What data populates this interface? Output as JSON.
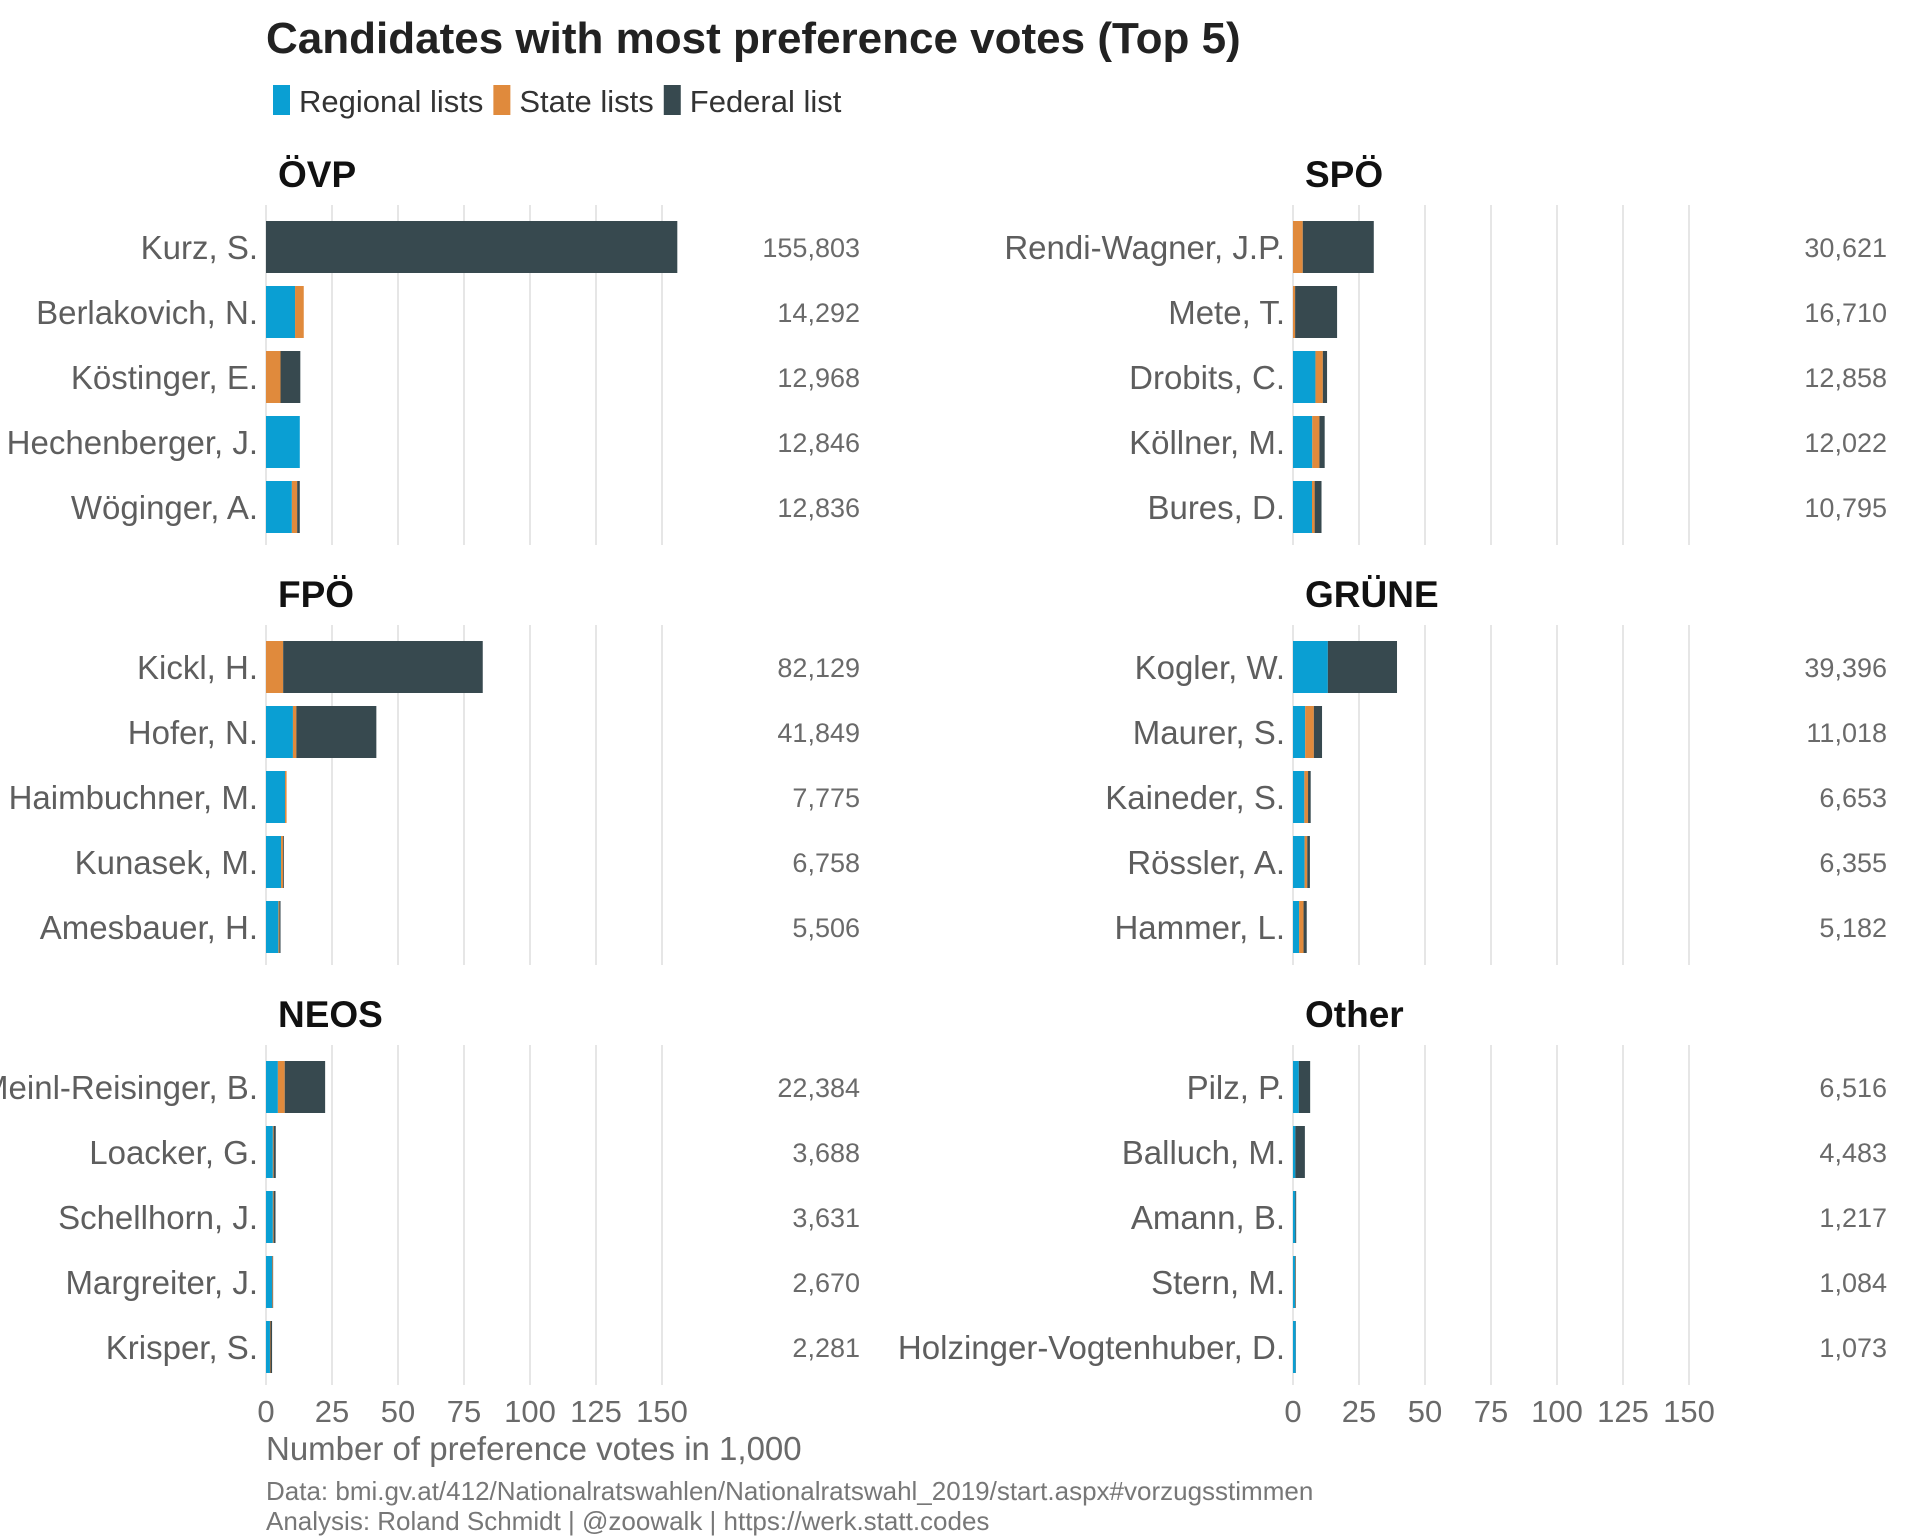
{
  "colors": {
    "regional": "#0a9fd3",
    "state": "#e08a3c",
    "federal": "#37494f",
    "grid": "#dedede"
  },
  "chart_data": {
    "type": "bar",
    "title": "Candidates with most preference votes (Top 5)",
    "xlabel": "Number of preference votes in 1,000",
    "xlim": [
      0,
      155
    ],
    "xticks": [
      "0",
      "25",
      "50",
      "75",
      "100",
      "125",
      "150"
    ],
    "grid": true,
    "legend_position": "top-left",
    "legend": [
      {
        "key": "regional",
        "label": "Regional lists"
      },
      {
        "key": "state",
        "label": "State lists"
      },
      {
        "key": "federal",
        "label": "Federal list"
      }
    ],
    "caption": [
      "Data: bmi.gv.at/412/Nationalratswahlen/Nationalratswahl_2019/start.aspx#vorzugsstimmen",
      "Analysis: Roland Schmidt | @zoowalk | https://werk.statt.codes"
    ],
    "panels": [
      {
        "party": "ÖVP",
        "candidates": [
          {
            "name": "Kurz, S.",
            "total_label": "155,803",
            "regional": 0,
            "state": 0,
            "federal": 155.8
          },
          {
            "name": "Berlakovich, N.",
            "total_label": "14,292",
            "regional": 11.0,
            "state": 3.3,
            "federal": 0
          },
          {
            "name": "Köstinger, E.",
            "total_label": "12,968",
            "regional": 0,
            "state": 5.5,
            "federal": 7.5
          },
          {
            "name": "Hechenberger, J.",
            "total_label": "12,846",
            "regional": 12.8,
            "state": 0,
            "federal": 0
          },
          {
            "name": "Wöginger, A.",
            "total_label": "12,836",
            "regional": 9.8,
            "state": 2.0,
            "federal": 1.0
          }
        ]
      },
      {
        "party": "SPÖ",
        "candidates": [
          {
            "name": "Rendi-Wagner, J.P.",
            "total_label": "30,621",
            "regional": 0,
            "state": 3.7,
            "federal": 26.9
          },
          {
            "name": "Mete, T.",
            "total_label": "16,710",
            "regional": 0,
            "state": 0.8,
            "federal": 15.9
          },
          {
            "name": "Drobits, C.",
            "total_label": "12,858",
            "regional": 8.5,
            "state": 2.8,
            "federal": 1.6
          },
          {
            "name": "Köllner, M.",
            "total_label": "12,022",
            "regional": 7.3,
            "state": 2.7,
            "federal": 2.0
          },
          {
            "name": "Bures, D.",
            "total_label": "10,795",
            "regional": 7.2,
            "state": 1.0,
            "federal": 2.6
          }
        ]
      },
      {
        "party": "FPÖ",
        "candidates": [
          {
            "name": "Kickl, H.",
            "total_label": "82,129",
            "regional": 0,
            "state": 6.5,
            "federal": 75.6
          },
          {
            "name": "Hofer, N.",
            "total_label": "41,849",
            "regional": 10.2,
            "state": 1.3,
            "federal": 30.3
          },
          {
            "name": "Haimbuchner, M.",
            "total_label": "7,775",
            "regional": 7.2,
            "state": 0.6,
            "federal": 0
          },
          {
            "name": "Kunasek, M.",
            "total_label": "6,758",
            "regional": 5.7,
            "state": 0.8,
            "federal": 0.3
          },
          {
            "name": "Amesbauer, H.",
            "total_label": "5,506",
            "regional": 4.7,
            "state": 0.4,
            "federal": 0.4
          }
        ]
      },
      {
        "party": "GRÜNE",
        "candidates": [
          {
            "name": "Kogler, W.",
            "total_label": "39,396",
            "regional": 13.2,
            "state": 0,
            "federal": 26.2
          },
          {
            "name": "Maurer, S.",
            "total_label": "11,018",
            "regional": 4.6,
            "state": 3.3,
            "federal": 3.1
          },
          {
            "name": "Kaineder, S.",
            "total_label": "6,653",
            "regional": 4.3,
            "state": 1.4,
            "federal": 1.0
          },
          {
            "name": "Rössler, A.",
            "total_label": "6,355",
            "regional": 4.4,
            "state": 1.0,
            "federal": 1.0
          },
          {
            "name": "Hammer, L.",
            "total_label": "5,182",
            "regional": 2.3,
            "state": 1.7,
            "federal": 1.2
          }
        ]
      },
      {
        "party": "NEOS",
        "candidates": [
          {
            "name": "Meinl-Reisinger, B.",
            "total_label": "22,384",
            "regional": 4.5,
            "state": 2.6,
            "federal": 15.3
          },
          {
            "name": "Loacker, G.",
            "total_label": "3,688",
            "regional": 2.6,
            "state": 0.3,
            "federal": 0.8
          },
          {
            "name": "Schellhorn, J.",
            "total_label": "3,631",
            "regional": 2.6,
            "state": 0.3,
            "federal": 0.7
          },
          {
            "name": "Margreiter, J.",
            "total_label": "2,670",
            "regional": 2.3,
            "state": 0.2,
            "federal": 0.2
          },
          {
            "name": "Krisper, S.",
            "total_label": "2,281",
            "regional": 1.5,
            "state": 0.2,
            "federal": 0.6
          }
        ]
      },
      {
        "party": "Other",
        "candidates": [
          {
            "name": "Pilz, P.",
            "total_label": "6,516",
            "regional": 2.2,
            "state": 0,
            "federal": 4.3
          },
          {
            "name": "Balluch, M.",
            "total_label": "4,483",
            "regional": 0.9,
            "state": 0,
            "federal": 3.6
          },
          {
            "name": "Amann, B.",
            "total_label": "1,217",
            "regional": 0.9,
            "state": 0,
            "federal": 0.3
          },
          {
            "name": "Stern, M.",
            "total_label": "1,084",
            "regional": 0.8,
            "state": 0.1,
            "federal": 0.2
          },
          {
            "name": "Holzinger-Vogtenhuber, D.",
            "total_label": "1,073",
            "regional": 1.0,
            "state": 0,
            "federal": 0.1
          }
        ]
      }
    ]
  }
}
